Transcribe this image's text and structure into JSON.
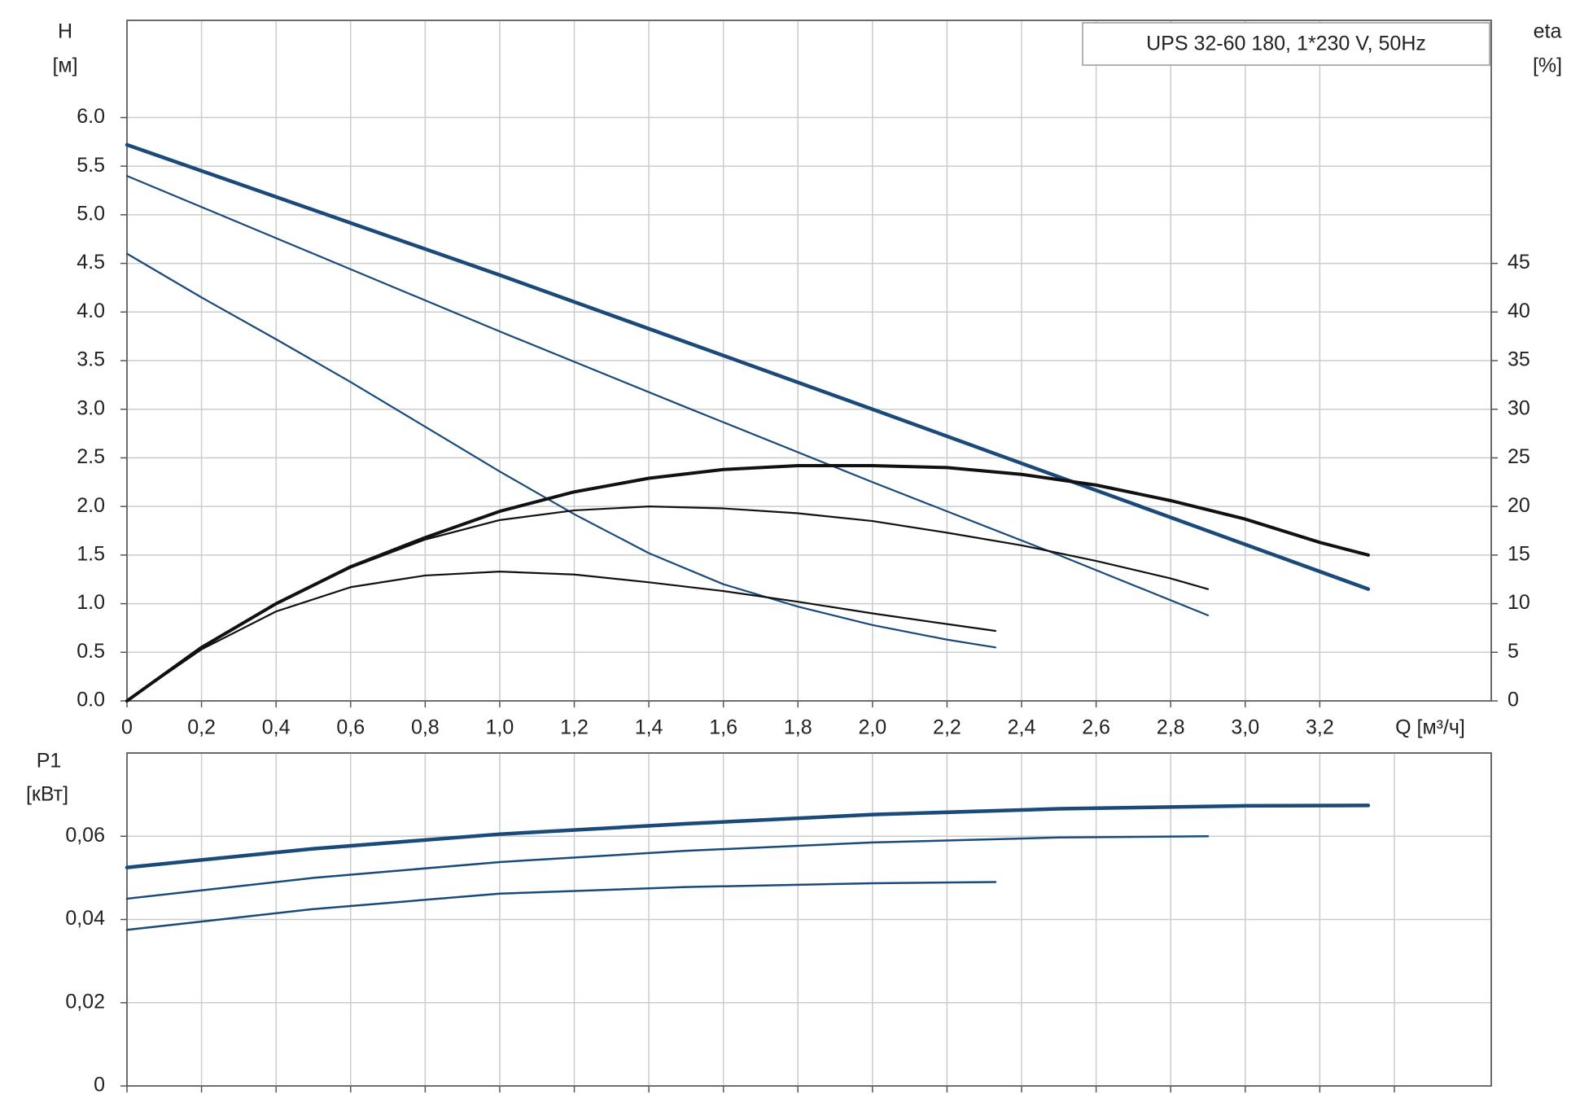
{
  "chart_data": [
    {
      "type": "line",
      "title": "UPS 32-60 180, 1*230 V, 50Hz",
      "ylabel": [
        "H",
        "[м]"
      ],
      "y2label": [
        "eta",
        "[%]"
      ],
      "xlabel": "Q [м³/ч]",
      "xlim": [
        0,
        3.66
      ],
      "ylim": [
        0,
        7
      ],
      "y2lim": [
        0,
        70
      ],
      "grid": true,
      "xticks": [
        0,
        {
          "value": 0.2,
          "label": "0,2"
        },
        {
          "value": 0.4,
          "label": "0,4"
        },
        {
          "value": 0.6,
          "label": "0,6"
        },
        {
          "value": 0.8,
          "label": "0,8"
        },
        {
          "value": 1.0,
          "label": "1,0"
        },
        {
          "value": 1.2,
          "label": "1,2"
        },
        {
          "value": 1.4,
          "label": "1,4"
        },
        {
          "value": 1.6,
          "label": "1,6"
        },
        {
          "value": 1.8,
          "label": "1,8"
        },
        {
          "value": 2.0,
          "label": "2,0"
        },
        {
          "value": 2.2,
          "label": "2,2"
        },
        {
          "value": 2.4,
          "label": "2,4"
        },
        {
          "value": 2.6,
          "label": "2,6"
        },
        {
          "value": 2.8,
          "label": "2,8"
        },
        {
          "value": 3.0,
          "label": "3,0"
        },
        {
          "value": 3.2,
          "label": "3,2"
        }
      ],
      "yticks": [
        {
          "value": 0,
          "label": "0.0"
        },
        0.5,
        {
          "value": 1,
          "label": "1.0"
        },
        1.5,
        {
          "value": 2,
          "label": "2.0"
        },
        2.5,
        {
          "value": 3,
          "label": "3.0"
        },
        3.5,
        {
          "value": 4,
          "label": "4.0"
        },
        4.5,
        {
          "value": 5,
          "label": "5.0"
        },
        5.5,
        {
          "value": 6,
          "label": "6.0"
        }
      ],
      "y2ticks": [
        0,
        5,
        10,
        15,
        20,
        25,
        30,
        35,
        40,
        45
      ],
      "series": [
        {
          "color": "#1a4a7a",
          "linewidth": 4.5,
          "x": [
            0,
            1.0,
            2.0,
            3.33
          ],
          "values": [
            5.72,
            4.38,
            3.0,
            1.15
          ]
        },
        {
          "color": "#1a4a7a",
          "linewidth": 2.2,
          "x": [
            0,
            0.5,
            1.0,
            1.5,
            2.0,
            2.5,
            2.9
          ],
          "values": [
            5.4,
            4.6,
            3.8,
            3.02,
            2.25,
            1.5,
            0.88
          ]
        },
        {
          "color": "#1a4a7a",
          "linewidth": 2.2,
          "x": [
            0,
            0.2,
            0.4,
            0.6,
            0.8,
            1.0,
            1.2,
            1.4,
            1.6,
            1.8,
            2.0,
            2.2,
            2.33
          ],
          "values": [
            4.6,
            4.15,
            3.72,
            3.28,
            2.82,
            2.36,
            1.92,
            1.52,
            1.2,
            0.97,
            0.78,
            0.63,
            0.55
          ]
        },
        {
          "color": "#111111",
          "linewidth": 4,
          "axis": "y2",
          "x": [
            0,
            0.2,
            0.4,
            0.6,
            0.8,
            1.0,
            1.2,
            1.4,
            1.6,
            1.8,
            2.0,
            2.2,
            2.4,
            2.6,
            2.8,
            3.0,
            3.2,
            3.33
          ],
          "values": [
            0,
            5.5,
            10,
            13.8,
            16.8,
            19.5,
            21.5,
            22.9,
            23.8,
            24.2,
            24.2,
            24,
            23.3,
            22.2,
            20.6,
            18.7,
            16.3,
            15
          ]
        },
        {
          "color": "#111111",
          "linewidth": 2.2,
          "axis": "y2",
          "x": [
            0,
            0.2,
            0.4,
            0.6,
            0.8,
            1.0,
            1.2,
            1.4,
            1.6,
            1.8,
            2.0,
            2.2,
            2.4,
            2.6,
            2.8,
            2.9
          ],
          "values": [
            0,
            5.5,
            10,
            13.7,
            16.6,
            18.6,
            19.6,
            20,
            19.8,
            19.3,
            18.5,
            17.3,
            16,
            14.4,
            12.6,
            11.5
          ]
        },
        {
          "color": "#111111",
          "linewidth": 2.2,
          "axis": "y2",
          "x": [
            0,
            0.2,
            0.4,
            0.6,
            0.8,
            1.0,
            1.2,
            1.4,
            1.6,
            1.8,
            2.0,
            2.2,
            2.33
          ],
          "values": [
            0,
            5.3,
            9.2,
            11.7,
            12.9,
            13.3,
            13,
            12.2,
            11.3,
            10.2,
            9,
            7.9,
            7.2
          ]
        }
      ]
    },
    {
      "type": "line",
      "ylabel": [
        "P1",
        "[кВт]"
      ],
      "xlim": [
        0,
        3.66
      ],
      "ylim": [
        0,
        0.08
      ],
      "grid": true,
      "xticklabels": false,
      "xticks": [
        0,
        0.2,
        0.4,
        0.6,
        0.8,
        1.0,
        1.2,
        1.4,
        1.6,
        1.8,
        2.0,
        2.2,
        2.4,
        2.6,
        2.8,
        3.0,
        3.2,
        3.4
      ],
      "yticks": [
        0,
        {
          "value": 0.02,
          "label": "0,02"
        },
        {
          "value": 0.04,
          "label": "0,04"
        },
        {
          "value": 0.06,
          "label": "0,06"
        }
      ],
      "series": [
        {
          "color": "#1a4a7a",
          "linewidth": 4.5,
          "x": [
            0,
            0.5,
            1.0,
            1.5,
            2.0,
            2.5,
            3.0,
            3.33
          ],
          "values": [
            0.0525,
            0.057,
            0.0605,
            0.063,
            0.0652,
            0.0666,
            0.0673,
            0.0674
          ]
        },
        {
          "color": "#1a4a7a",
          "linewidth": 2.5,
          "x": [
            0,
            0.5,
            1.0,
            1.5,
            2.0,
            2.5,
            2.9
          ],
          "values": [
            0.045,
            0.05,
            0.0538,
            0.0565,
            0.0585,
            0.0597,
            0.06
          ]
        },
        {
          "color": "#1a4a7a",
          "linewidth": 2.5,
          "x": [
            0,
            0.5,
            1.0,
            1.5,
            2.0,
            2.33
          ],
          "values": [
            0.0375,
            0.0425,
            0.0462,
            0.0478,
            0.0487,
            0.049
          ]
        }
      ]
    }
  ]
}
